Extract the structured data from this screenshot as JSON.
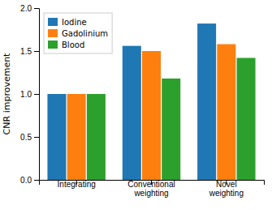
{
  "chart_data": {
    "type": "bar",
    "categories": [
      "Integrating",
      "Conventional\nweighting",
      "Novel\nweighting"
    ],
    "series": [
      {
        "name": "Iodine",
        "values": [
          1.0,
          1.56,
          1.82
        ]
      },
      {
        "name": "Gadolinium",
        "values": [
          1.0,
          1.5,
          1.58
        ]
      },
      {
        "name": "Blood",
        "values": [
          1.0,
          1.18,
          1.42
        ]
      }
    ],
    "ylim": [
      0.0,
      2.0
    ],
    "yticks": [
      {
        "value": 0.0,
        "label": "0.0"
      },
      {
        "value": 0.5,
        "label": "0.5"
      },
      {
        "value": 1.0,
        "label": "1.0"
      },
      {
        "value": 1.5,
        "label": "1.5"
      },
      {
        "value": 2.0,
        "label": "2.0"
      }
    ],
    "y_label": "CNR improvement",
    "legend": "upper left",
    "grid": false
  }
}
